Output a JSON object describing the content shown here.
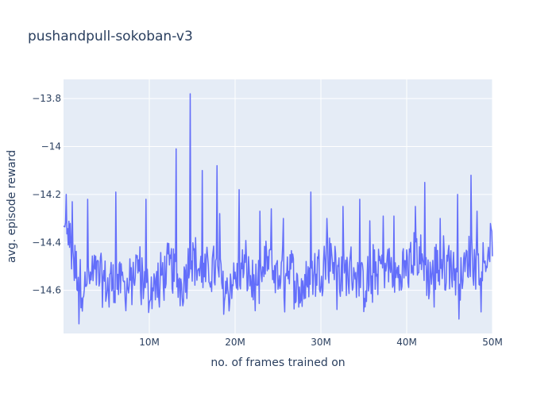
{
  "chart_data": {
    "type": "line",
    "title": "pushandpull-sokoban-v3",
    "xlabel": "no. of frames trained on",
    "ylabel": "avg. episode reward",
    "xlim": [
      0,
      50000000
    ],
    "ylim": [
      -14.78,
      -13.72
    ],
    "x_ticks": [
      10000000,
      20000000,
      30000000,
      40000000,
      50000000
    ],
    "x_tick_labels": [
      "10M",
      "20M",
      "30M",
      "40M",
      "50M"
    ],
    "y_ticks": [
      -14.6,
      -14.4,
      -14.2,
      -14,
      -13.8
    ],
    "y_tick_labels": [
      "−14.6",
      "−14.4",
      "−14.2",
      "−14",
      "−13.8"
    ],
    "grid": true,
    "colors": {
      "line": "#636efa",
      "plot_bg": "#e5ecf6",
      "grid": "#ffffff",
      "text": "#2a3f5f"
    },
    "series": [
      {
        "x": [
          0,
          1250000,
          2500000,
          3750000,
          5000000,
          6250000,
          7500000,
          8750000,
          10000000,
          11250000,
          12500000,
          13750000,
          15000000,
          16250000,
          17500000,
          18750000,
          20000000,
          21250000,
          22500000,
          23750000,
          25000000,
          26250000,
          27500000,
          28750000,
          30000000,
          31250000,
          32500000,
          33750000,
          35000000,
          36250000,
          37500000,
          38750000,
          40000000,
          41250000,
          42500000,
          43750000,
          45000000,
          46250000,
          47500000,
          48750000,
          50000000
        ],
        "values": [
          -14.2,
          -14.5,
          -14.6,
          -14.52,
          -14.58,
          -14.55,
          -14.6,
          -14.5,
          -14.62,
          -14.55,
          -14.5,
          -14.58,
          -14.45,
          -14.55,
          -14.5,
          -14.6,
          -14.55,
          -14.5,
          -14.62,
          -14.48,
          -14.55,
          -14.5,
          -14.6,
          -14.55,
          -14.5,
          -14.45,
          -14.55,
          -14.5,
          -14.6,
          -14.52,
          -14.48,
          -14.55,
          -14.5,
          -14.45,
          -14.55,
          -14.5,
          -14.48,
          -14.55,
          -14.45,
          -14.5,
          -14.38
        ]
      }
    ],
    "peaks": [
      {
        "x": 300000,
        "y": -14.2
      },
      {
        "x": 1000000,
        "y": -14.23
      },
      {
        "x": 2800000,
        "y": -14.22
      },
      {
        "x": 6100000,
        "y": -14.19
      },
      {
        "x": 9600000,
        "y": -14.22
      },
      {
        "x": 13100000,
        "y": -14.01
      },
      {
        "x": 14800000,
        "y": -13.78
      },
      {
        "x": 16200000,
        "y": -14.1
      },
      {
        "x": 17900000,
        "y": -14.08
      },
      {
        "x": 18200000,
        "y": -14.28
      },
      {
        "x": 20500000,
        "y": -14.18
      },
      {
        "x": 22900000,
        "y": -14.27
      },
      {
        "x": 24200000,
        "y": -14.26
      },
      {
        "x": 25600000,
        "y": -14.3
      },
      {
        "x": 28800000,
        "y": -14.19
      },
      {
        "x": 30700000,
        "y": -14.3
      },
      {
        "x": 32600000,
        "y": -14.25
      },
      {
        "x": 34500000,
        "y": -14.22
      },
      {
        "x": 35700000,
        "y": -14.31
      },
      {
        "x": 37300000,
        "y": -14.29
      },
      {
        "x": 38500000,
        "y": -14.29
      },
      {
        "x": 41000000,
        "y": -14.25
      },
      {
        "x": 42100000,
        "y": -14.15
      },
      {
        "x": 43900000,
        "y": -14.3
      },
      {
        "x": 45900000,
        "y": -14.2
      },
      {
        "x": 47500000,
        "y": -14.12
      },
      {
        "x": 48200000,
        "y": -14.27
      }
    ],
    "troughs": [
      {
        "x": 1800000,
        "y": -14.74
      },
      {
        "x": 5300000,
        "y": -14.67
      },
      {
        "x": 9100000,
        "y": -14.66
      },
      {
        "x": 11200000,
        "y": -14.67
      },
      {
        "x": 19400000,
        "y": -14.65
      },
      {
        "x": 25800000,
        "y": -14.69
      },
      {
        "x": 27400000,
        "y": -14.67
      },
      {
        "x": 31900000,
        "y": -14.68
      },
      {
        "x": 36000000,
        "y": -14.65
      },
      {
        "x": 43200000,
        "y": -14.67
      },
      {
        "x": 46100000,
        "y": -14.72
      },
      {
        "x": 48700000,
        "y": -14.69
      }
    ]
  }
}
